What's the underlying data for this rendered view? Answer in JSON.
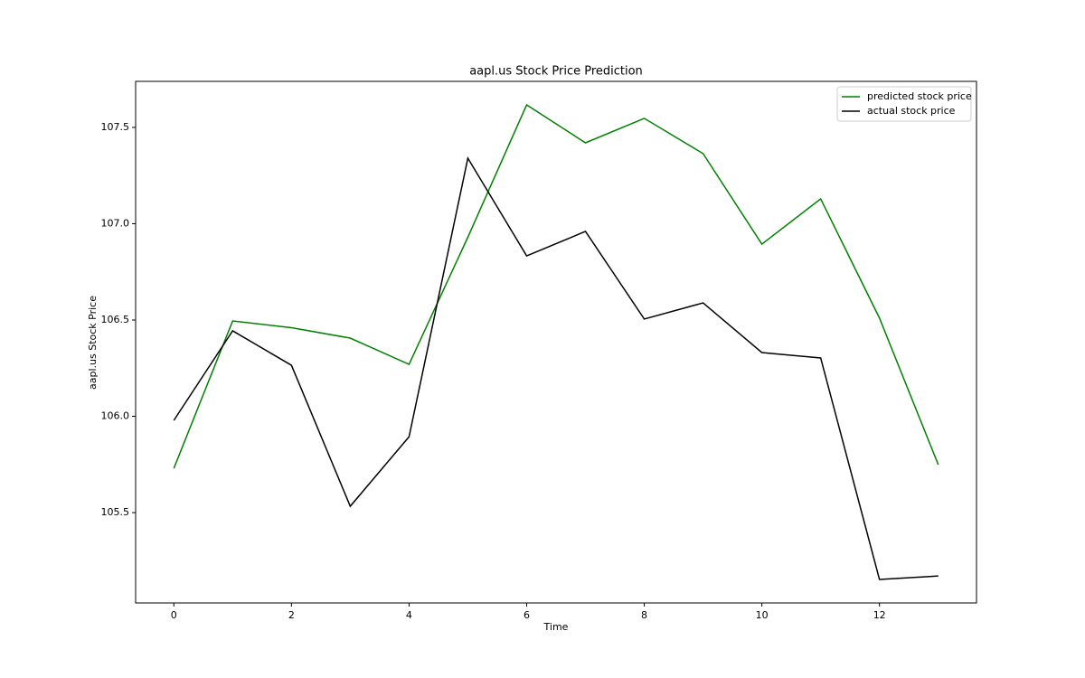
{
  "chart_data": {
    "type": "line",
    "title": "aapl.us Stock Price Prediction",
    "x_label": "Time",
    "y_label": "aapl.us Stock Price",
    "x": [
      0,
      1,
      2,
      3,
      4,
      5,
      6,
      7,
      8,
      9,
      10,
      11,
      12,
      13
    ],
    "series": [
      {
        "name": "predicted stock price",
        "color": "#008000",
        "values": [
          105.73,
          106.495,
          106.46,
          106.406,
          106.27,
          106.93,
          107.617,
          107.42,
          107.547,
          107.364,
          106.894,
          107.129,
          106.51,
          105.749
        ]
      },
      {
        "name": "actual stock price",
        "color": "#000000",
        "values": [
          105.979,
          106.444,
          106.265,
          105.533,
          105.894,
          107.34,
          106.833,
          106.96,
          106.505,
          106.589,
          106.331,
          106.303,
          105.153,
          105.171
        ]
      }
    ],
    "xlim": [
      -0.65,
      13.65
    ],
    "xticks": [
      0,
      2,
      4,
      6,
      8,
      10,
      12
    ],
    "ylim": [
      105.031,
      107.739
    ],
    "yticks": [
      105.5,
      {
        "value": 106,
        "label": "106.0"
      },
      106.5,
      {
        "value": 107,
        "label": "107.0"
      },
      107.5
    ],
    "grid": false,
    "legend": "upper-right"
  }
}
